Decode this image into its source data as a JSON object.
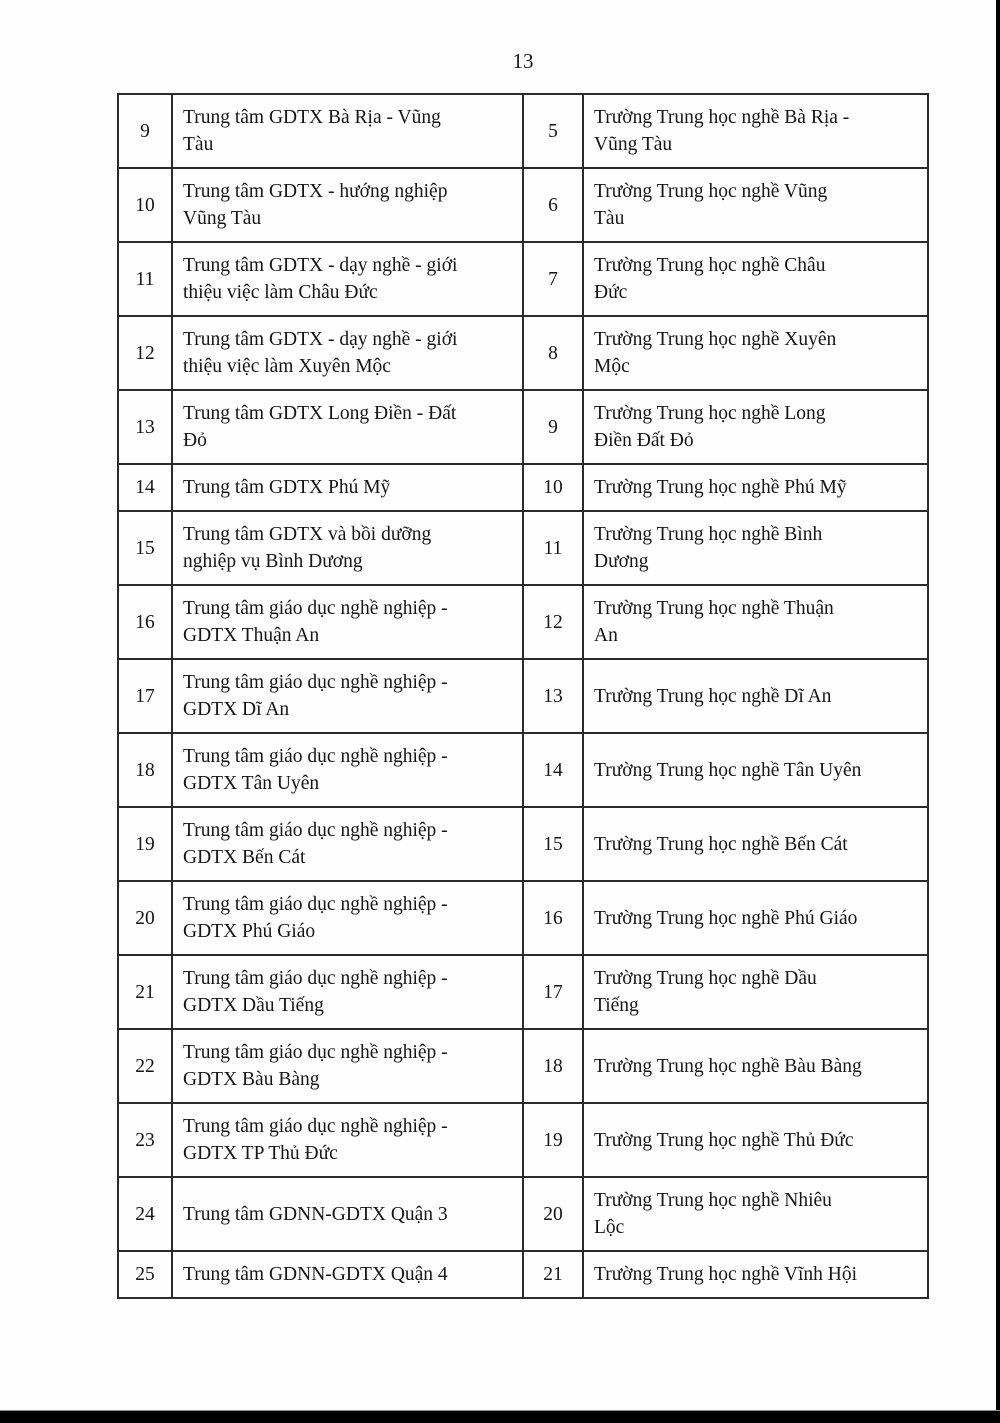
{
  "page": {
    "number": "13"
  },
  "colors": {
    "background": "#fefefe",
    "text": "#151515",
    "table_border": "#2b2b2b",
    "scan_edge": "#000000"
  },
  "table": {
    "rows": [
      {
        "no_left": "9",
        "center": "Trung tâm GDTX Bà Rịa - Vũng\nTàu",
        "no_right": "5",
        "school": "Trường Trung học nghề Bà Rịa -\nVũng Tàu"
      },
      {
        "no_left": "10",
        "center": "Trung tâm GDTX - hướng nghiệp\nVũng Tàu",
        "no_right": "6",
        "school": "Trường Trung học nghề Vũng\nTàu"
      },
      {
        "no_left": "11",
        "center": "Trung tâm GDTX - dạy nghề - giới\nthiệu việc làm Châu Đức",
        "no_right": "7",
        "school": "Trường Trung học nghề Châu\nĐức"
      },
      {
        "no_left": "12",
        "center": "Trung tâm GDTX - dạy nghề - giới\nthiệu việc làm Xuyên Mộc",
        "no_right": "8",
        "school": "Trường Trung học nghề Xuyên\nMộc"
      },
      {
        "no_left": "13",
        "center": "Trung tâm GDTX Long Điền - Đất\nĐỏ",
        "no_right": "9",
        "school": "Trường Trung học nghề Long\nĐiền Đất Đỏ"
      },
      {
        "no_left": "14",
        "center": "Trung tâm GDTX Phú Mỹ",
        "no_right": "10",
        "school": "Trường Trung học nghề Phú Mỹ"
      },
      {
        "no_left": "15",
        "center": "Trung tâm GDTX và bồi dưỡng\nnghiệp vụ Bình Dương",
        "no_right": "11",
        "school": "Trường Trung học nghề Bình\nDương"
      },
      {
        "no_left": "16",
        "center": "Trung tâm giáo dục nghề nghiệp -\nGDTX Thuận An",
        "no_right": "12",
        "school": "Trường Trung học nghề Thuận\nAn"
      },
      {
        "no_left": "17",
        "center": "Trung tâm giáo dục nghề nghiệp -\nGDTX Dĩ An",
        "no_right": "13",
        "school": "Trường Trung học nghề Dĩ An"
      },
      {
        "no_left": "18",
        "center": "Trung tâm giáo dục nghề nghiệp -\nGDTX Tân Uyên",
        "no_right": "14",
        "school": "Trường Trung học nghề Tân Uyên"
      },
      {
        "no_left": "19",
        "center": "Trung tâm giáo dục nghề nghiệp -\nGDTX Bến Cát",
        "no_right": "15",
        "school": "Trường Trung học nghề Bến Cát"
      },
      {
        "no_left": "20",
        "center": "Trung tâm giáo dục nghề nghiệp -\nGDTX Phú Giáo",
        "no_right": "16",
        "school": "Trường Trung học nghề Phú Giáo"
      },
      {
        "no_left": "21",
        "center": "Trung tâm giáo dục nghề nghiệp -\nGDTX Dầu Tiếng",
        "no_right": "17",
        "school": "Trường Trung học nghề Dầu\nTiếng"
      },
      {
        "no_left": "22",
        "center": "Trung tâm giáo dục nghề nghiệp -\nGDTX Bàu Bàng",
        "no_right": "18",
        "school": "Trường Trung học nghề Bàu Bàng"
      },
      {
        "no_left": "23",
        "center": "Trung tâm giáo dục nghề nghiệp -\nGDTX TP Thủ Đức",
        "no_right": "19",
        "school": "Trường Trung học nghề Thủ Đức"
      },
      {
        "no_left": "24",
        "center": "Trung tâm GDNN-GDTX Quận 3",
        "no_right": "20",
        "school": "Trường Trung học nghề Nhiêu\nLộc"
      },
      {
        "no_left": "25",
        "center": "Trung tâm GDNN-GDTX Quận 4",
        "no_right": "21",
        "school": "Trường Trung học nghề Vĩnh Hội"
      }
    ]
  }
}
